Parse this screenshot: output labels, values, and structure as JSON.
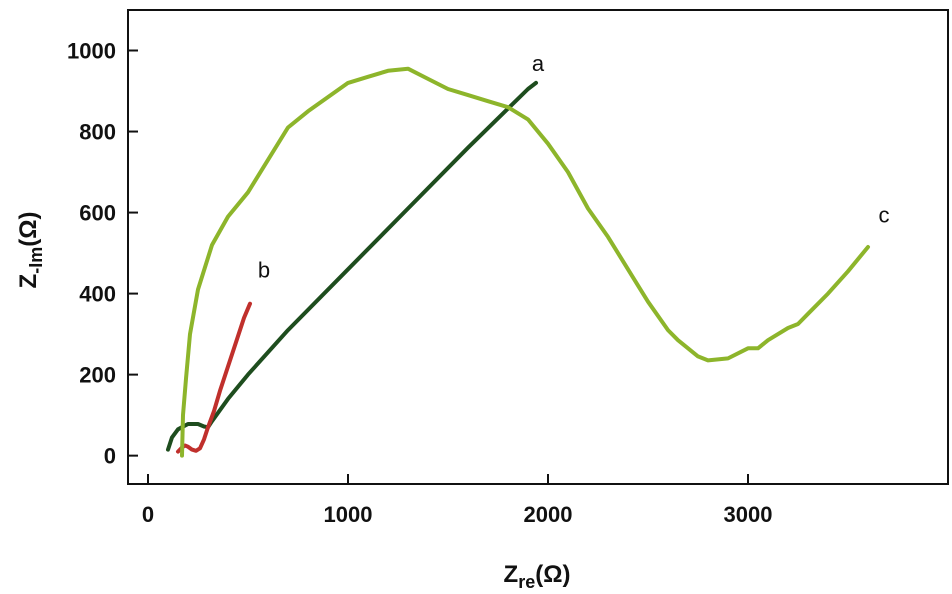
{
  "chart_data": {
    "type": "line",
    "title": "",
    "xlabel": {
      "main": "Z",
      "sub": "re",
      "unit": "(Ω)"
    },
    "ylabel": {
      "main": "Z",
      "sub": "-Im",
      "unit": "(Ω)"
    },
    "xlim": [
      -100,
      4000
    ],
    "ylim": [
      -70,
      1100
    ],
    "xticks": [
      0,
      1000,
      2000,
      3000
    ],
    "yticks": [
      0,
      200,
      400,
      600,
      800,
      1000
    ],
    "grid": false,
    "legend": "none",
    "series": [
      {
        "name": "a",
        "color": "#1e4d1e",
        "label_at": [
          1950,
          950
        ],
        "points": [
          [
            100,
            15
          ],
          [
            120,
            45
          ],
          [
            150,
            65
          ],
          [
            200,
            78
          ],
          [
            250,
            78
          ],
          [
            280,
            72
          ],
          [
            300,
            70
          ],
          [
            320,
            85
          ],
          [
            400,
            140
          ],
          [
            500,
            200
          ],
          [
            700,
            310
          ],
          [
            1000,
            460
          ],
          [
            1300,
            610
          ],
          [
            1600,
            760
          ],
          [
            1900,
            905
          ],
          [
            1940,
            920
          ]
        ]
      },
      {
        "name": "b",
        "color": "#c0302c",
        "label_at": [
          580,
          440
        ],
        "points": [
          [
            150,
            10
          ],
          [
            170,
            20
          ],
          [
            185,
            25
          ],
          [
            200,
            22
          ],
          [
            220,
            15
          ],
          [
            240,
            12
          ],
          [
            260,
            18
          ],
          [
            280,
            40
          ],
          [
            300,
            70
          ],
          [
            330,
            110
          ],
          [
            360,
            160
          ],
          [
            400,
            220
          ],
          [
            440,
            280
          ],
          [
            480,
            340
          ],
          [
            510,
            375
          ]
        ]
      },
      {
        "name": "c",
        "color": "#8db52b",
        "label_at": [
          3680,
          575
        ],
        "points": [
          [
            170,
            0
          ],
          [
            175,
            100
          ],
          [
            190,
            190
          ],
          [
            210,
            300
          ],
          [
            250,
            410
          ],
          [
            320,
            520
          ],
          [
            400,
            590
          ],
          [
            500,
            650
          ],
          [
            700,
            810
          ],
          [
            800,
            850
          ],
          [
            1000,
            920
          ],
          [
            1100,
            935
          ],
          [
            1200,
            950
          ],
          [
            1300,
            955
          ],
          [
            1400,
            930
          ],
          [
            1500,
            905
          ],
          [
            1600,
            890
          ],
          [
            1700,
            875
          ],
          [
            1800,
            860
          ],
          [
            1900,
            830
          ],
          [
            2000,
            770
          ],
          [
            2100,
            700
          ],
          [
            2200,
            610
          ],
          [
            2300,
            540
          ],
          [
            2400,
            460
          ],
          [
            2500,
            380
          ],
          [
            2600,
            310
          ],
          [
            2650,
            285
          ],
          [
            2700,
            265
          ],
          [
            2750,
            245
          ],
          [
            2800,
            235
          ],
          [
            2900,
            240
          ],
          [
            3000,
            265
          ],
          [
            3050,
            265
          ],
          [
            3100,
            285
          ],
          [
            3200,
            315
          ],
          [
            3250,
            325
          ],
          [
            3300,
            350
          ],
          [
            3400,
            400
          ],
          [
            3500,
            455
          ],
          [
            3600,
            515
          ]
        ]
      }
    ]
  }
}
